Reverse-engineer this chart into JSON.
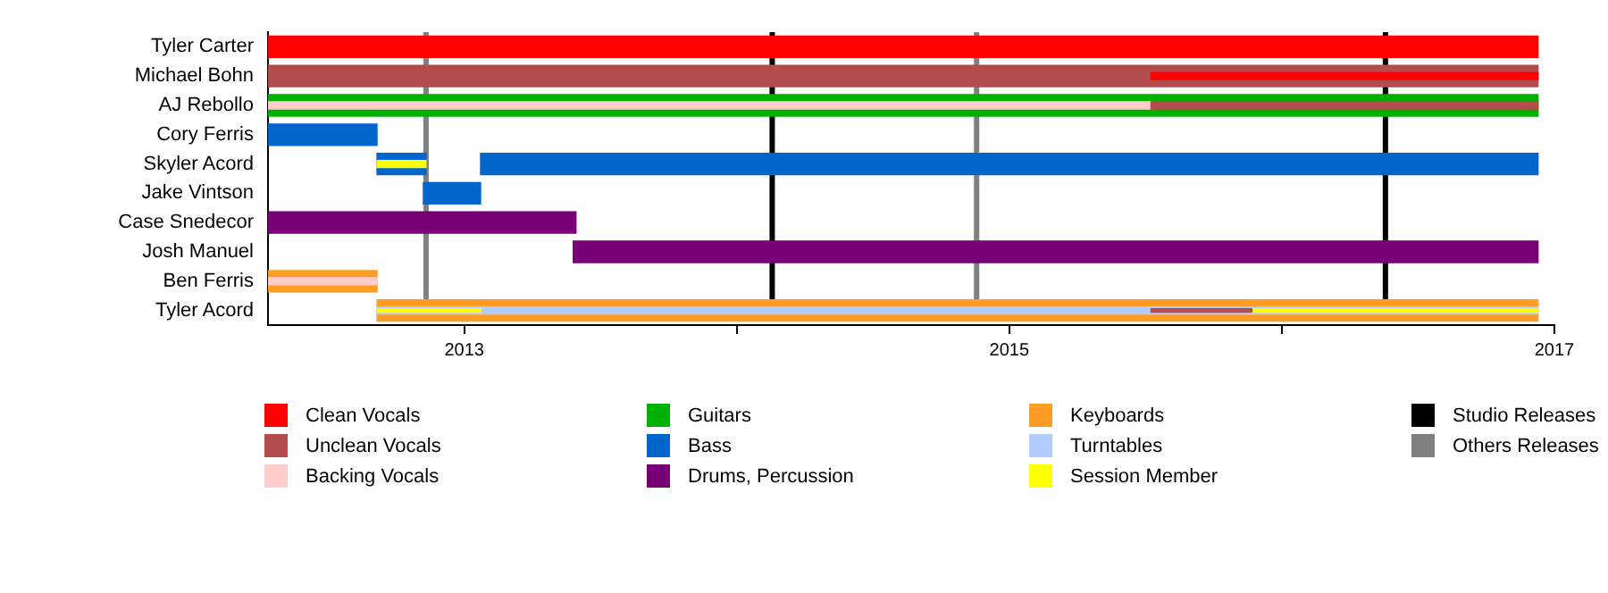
{
  "chart_data": {
    "type": "bar",
    "orientation": "horizontal",
    "legend": "bottom",
    "grid": false,
    "categories": [
      "Tyler Carter",
      "Michael Bohn",
      "AJ Rebollo",
      "Cory Ferris",
      "Skyler Acord",
      "Jake Vintson",
      "Case Snedecor",
      "Josh Manuel",
      "Ben Ferris",
      "Tyler Acord"
    ],
    "xlim": [
      2012.28,
      2017
    ],
    "xticks": [
      2013,
      {
        "value": 2014,
        "label": null
      },
      2015,
      {
        "value": 2016,
        "label": null
      },
      2017
    ],
    "series": [
      {
        "name": "Clean Vocals",
        "color": "#ff0000",
        "base": [
          2012.28,
          2015.52,
          null,
          null,
          null,
          null,
          null,
          null,
          null,
          null
        ],
        "values": [
          4.66,
          1.42,
          null,
          null,
          null,
          null,
          null,
          null,
          null,
          null
        ]
      },
      {
        "name": "Unclean Vocals",
        "color": "#b34d4d",
        "base": [
          null,
          2012.28,
          2015.52,
          null,
          null,
          null,
          null,
          null,
          null,
          2015.52
        ],
        "values": [
          null,
          4.66,
          1.42,
          null,
          null,
          null,
          null,
          null,
          null,
          0.37
        ]
      },
      {
        "name": "Backing Vocals",
        "color": "#ffcccc",
        "base": [
          null,
          null,
          2012.28,
          null,
          null,
          null,
          null,
          null,
          2012.28,
          null
        ],
        "values": [
          null,
          null,
          3.24,
          null,
          null,
          null,
          null,
          null,
          0.4,
          null
        ]
      },
      {
        "name": "Guitars",
        "color": "#00b000",
        "base": [
          null,
          null,
          2012.28,
          null,
          null,
          null,
          null,
          null,
          null,
          null
        ],
        "values": [
          null,
          null,
          4.66,
          null,
          null,
          null,
          null,
          null,
          null,
          null
        ]
      },
      {
        "name": "Bass",
        "color": "#0066cc",
        "base": [
          null,
          null,
          null,
          2012.28,
          2012.68,
          2012.85,
          null,
          null,
          null,
          null
        ],
        "values": [
          null,
          null,
          null,
          0.4,
          0.18,
          0.21,
          null,
          null,
          null,
          null
        ]
      },
      {
        "color": "#0066cc",
        "base": [
          null,
          null,
          null,
          null,
          2013.06,
          null,
          null,
          null,
          null,
          null
        ],
        "values": [
          null,
          null,
          null,
          null,
          3.88,
          null,
          null,
          null,
          null,
          null
        ]
      },
      {
        "name": "Drums, Percussion",
        "color": "#770077",
        "base": [
          null,
          null,
          null,
          null,
          null,
          null,
          2012.28,
          2013.4,
          null,
          null
        ],
        "values": [
          null,
          null,
          null,
          null,
          null,
          null,
          1.13,
          3.54,
          null,
          null
        ]
      },
      {
        "name": "Keyboards",
        "color": "#ff9c26",
        "base": [
          null,
          null,
          null,
          null,
          null,
          null,
          null,
          null,
          2012.28,
          2012.68
        ],
        "values": [
          null,
          null,
          null,
          null,
          null,
          null,
          null,
          null,
          0.4,
          4.26
        ]
      },
      {
        "name": "Turntables",
        "color": "#b3ccff",
        "base": [
          null,
          null,
          null,
          null,
          null,
          null,
          null,
          null,
          null,
          2012.68
        ],
        "values": [
          null,
          null,
          null,
          null,
          null,
          null,
          null,
          null,
          null,
          4.26
        ]
      },
      {
        "name": "Session Member",
        "color": "#ffff00",
        "base": [
          null,
          null,
          null,
          null,
          2012.68,
          null,
          null,
          null,
          null,
          2012.68
        ],
        "values": [
          null,
          null,
          null,
          null,
          0.18,
          null,
          null,
          null,
          null,
          0.38
        ]
      },
      {
        "color": "#ffff00",
        "base": [
          null,
          null,
          null,
          null,
          null,
          null,
          null,
          null,
          null,
          2015.89
        ],
        "values": [
          null,
          null,
          null,
          null,
          null,
          null,
          null,
          null,
          null,
          1.05
        ]
      }
    ],
    "ref_lines": [
      {
        "axis": "x",
        "value": 2014.13,
        "label": "Studio Releases",
        "color": "#000000"
      },
      {
        "axis": "x",
        "value": 2016.38,
        "color": "#000000"
      },
      {
        "axis": "x",
        "value": 2012.86,
        "label": "Others Releases",
        "color": "#808080"
      },
      {
        "axis": "x",
        "value": 2014.88,
        "color": "#808080"
      }
    ]
  }
}
